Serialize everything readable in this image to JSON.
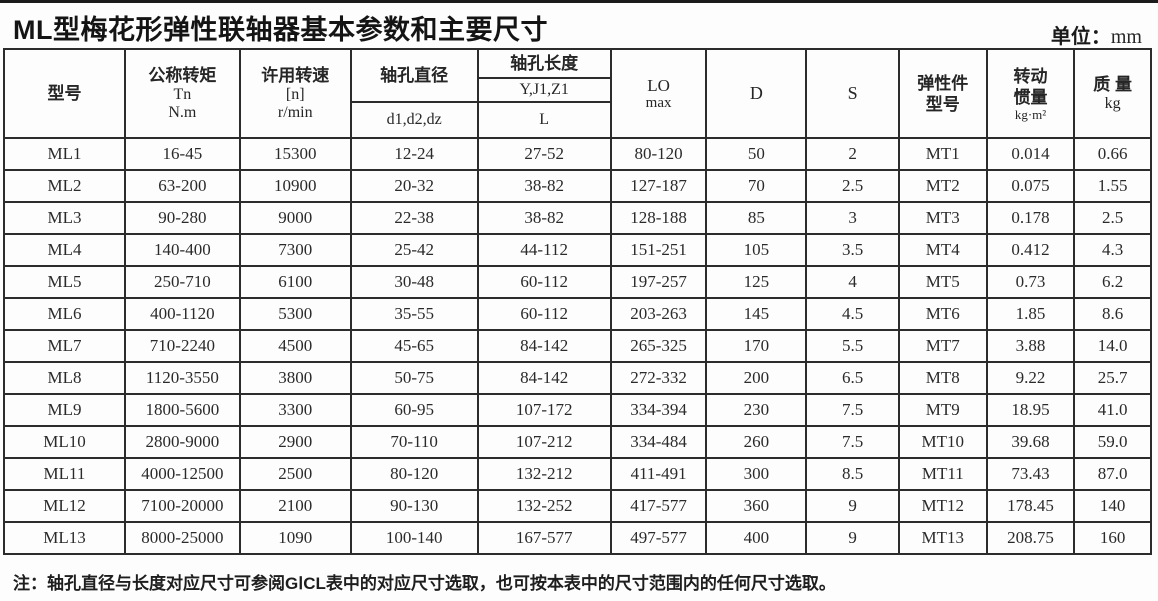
{
  "page": {
    "title": "ML型梅花形弹性联轴器基本参数和主要尺寸",
    "unit_label": "单位：",
    "unit_value": "mm"
  },
  "table": {
    "header": {
      "model": "型号",
      "torque_zh": "公称转矩",
      "torque_sym": "Tn",
      "torque_unit": "N.m",
      "speed_zh": "许用转速",
      "speed_sym": "[n]",
      "speed_unit": "r/min",
      "bore_dia_zh": "轴孔直径",
      "bore_dia_sub": "d1,d2,dz",
      "bore_len_zh": "轴孔长度",
      "bore_len_codes": "Y,J1,Z1",
      "bore_len_sub": "L",
      "lo_sym": "LO",
      "lo_sub": "max",
      "d": "D",
      "s": "S",
      "elastic_line1": "弹性件",
      "elastic_line2": "型号",
      "inertia_line1": "转动",
      "inertia_line2": "惯量",
      "inertia_unit": "kg·m²",
      "mass_zh": "质 量",
      "mass_unit": "kg"
    },
    "rows": [
      [
        "ML1",
        "16-45",
        "15300",
        "12-24",
        "27-52",
        "80-120",
        "50",
        "2",
        "MT1",
        "0.014",
        "0.66"
      ],
      [
        "ML2",
        "63-200",
        "10900",
        "20-32",
        "38-82",
        "127-187",
        "70",
        "2.5",
        "MT2",
        "0.075",
        "1.55"
      ],
      [
        "ML3",
        "90-280",
        "9000",
        "22-38",
        "38-82",
        "128-188",
        "85",
        "3",
        "MT3",
        "0.178",
        "2.5"
      ],
      [
        "ML4",
        "140-400",
        "7300",
        "25-42",
        "44-112",
        "151-251",
        "105",
        "3.5",
        "MT4",
        "0.412",
        "4.3"
      ],
      [
        "ML5",
        "250-710",
        "6100",
        "30-48",
        "60-112",
        "197-257",
        "125",
        "4",
        "MT5",
        "0.73",
        "6.2"
      ],
      [
        "ML6",
        "400-1120",
        "5300",
        "35-55",
        "60-112",
        "203-263",
        "145",
        "4.5",
        "MT6",
        "1.85",
        "8.6"
      ],
      [
        "ML7",
        "710-2240",
        "4500",
        "45-65",
        "84-142",
        "265-325",
        "170",
        "5.5",
        "MT7",
        "3.88",
        "14.0"
      ],
      [
        "ML8",
        "1120-3550",
        "3800",
        "50-75",
        "84-142",
        "272-332",
        "200",
        "6.5",
        "MT8",
        "9.22",
        "25.7"
      ],
      [
        "ML9",
        "1800-5600",
        "3300",
        "60-95",
        "107-172",
        "334-394",
        "230",
        "7.5",
        "MT9",
        "18.95",
        "41.0"
      ],
      [
        "ML10",
        "2800-9000",
        "2900",
        "70-110",
        "107-212",
        "334-484",
        "260",
        "7.5",
        "MT10",
        "39.68",
        "59.0"
      ],
      [
        "ML11",
        "4000-12500",
        "2500",
        "80-120",
        "132-212",
        "411-491",
        "300",
        "8.5",
        "MT11",
        "73.43",
        "87.0"
      ],
      [
        "ML12",
        "7100-20000",
        "2100",
        "90-130",
        "132-252",
        "417-577",
        "360",
        "9",
        "MT12",
        "178.45",
        "140"
      ],
      [
        "ML13",
        "8000-25000",
        "1090",
        "100-140",
        "167-577",
        "497-577",
        "400",
        "9",
        "MT13",
        "208.75",
        "160"
      ]
    ]
  },
  "note": {
    "label": "注：",
    "text": "轴孔直径与长度对应尺寸可参阅GⅠCL表中的对应尺寸选取，也可按本表中的尺寸范围内的任何尺寸选取。"
  }
}
